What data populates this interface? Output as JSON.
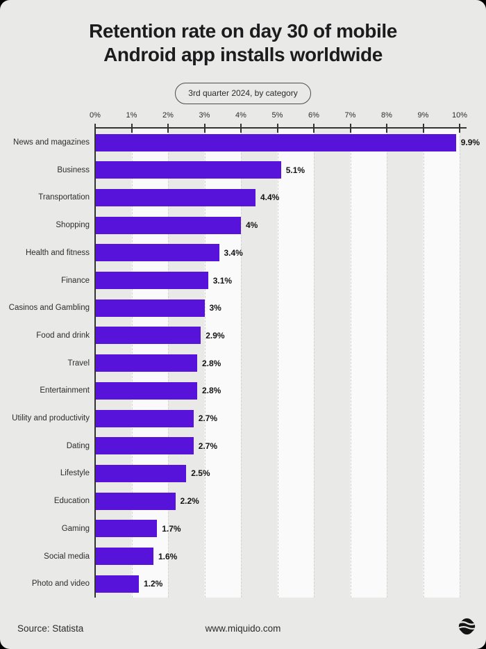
{
  "page": {
    "title_line1": "Retention rate on day 30 of mobile",
    "title_line2": "Android app installs worldwide",
    "subtitle_badge": "3rd quarter 2024, by category"
  },
  "footer": {
    "source": "Source: Statista",
    "website": "www.miquido.com",
    "logo_icon": "miquido-logo"
  },
  "colors": {
    "bar": "#5813db",
    "background": "#e9e9e7",
    "stripe_light": "#fafafa",
    "axis": "#333330",
    "title_text": "#1c1c1e"
  },
  "chart_data": {
    "type": "bar",
    "orientation": "horizontal",
    "title": "Retention rate on day 30 of mobile Android app installs worldwide",
    "subtitle": "3rd quarter 2024, by category",
    "categories": [
      "News and magazines",
      "Business",
      "Transportation",
      "Shopping",
      "Health and fitness",
      "Finance",
      "Casinos and Gambling",
      "Food and drink",
      "Travel",
      "Entertainment",
      "Utility and productivity",
      "Dating",
      "Lifestyle",
      "Education",
      "Gaming",
      "Social media",
      "Photo and video"
    ],
    "values": [
      9.9,
      5.1,
      4.4,
      4,
      3.4,
      3.1,
      3,
      2.9,
      2.8,
      2.8,
      2.7,
      2.7,
      2.5,
      2.2,
      1.7,
      1.6,
      1.2
    ],
    "value_labels": [
      "9.9%",
      "5.1%",
      "4.4%",
      "4%",
      "3.4%",
      "3.1%",
      "3%",
      "2.9%",
      "2.8%",
      "2.8%",
      "2.7%",
      "2.7%",
      "2.5%",
      "2.2%",
      "1.7%",
      "1.6%",
      "1.2%"
    ],
    "xlim": [
      0,
      10
    ],
    "x_ticks": [
      "0%",
      "1%",
      "2%",
      "3%",
      "4%",
      "5%",
      "6%",
      "7%",
      "8%",
      "9%",
      "10%"
    ],
    "grid": "dashed vertical lines at each 1% with alternating column shading",
    "legend": "none",
    "axis_position": "top",
    "value_label_position": "right of bar end"
  }
}
